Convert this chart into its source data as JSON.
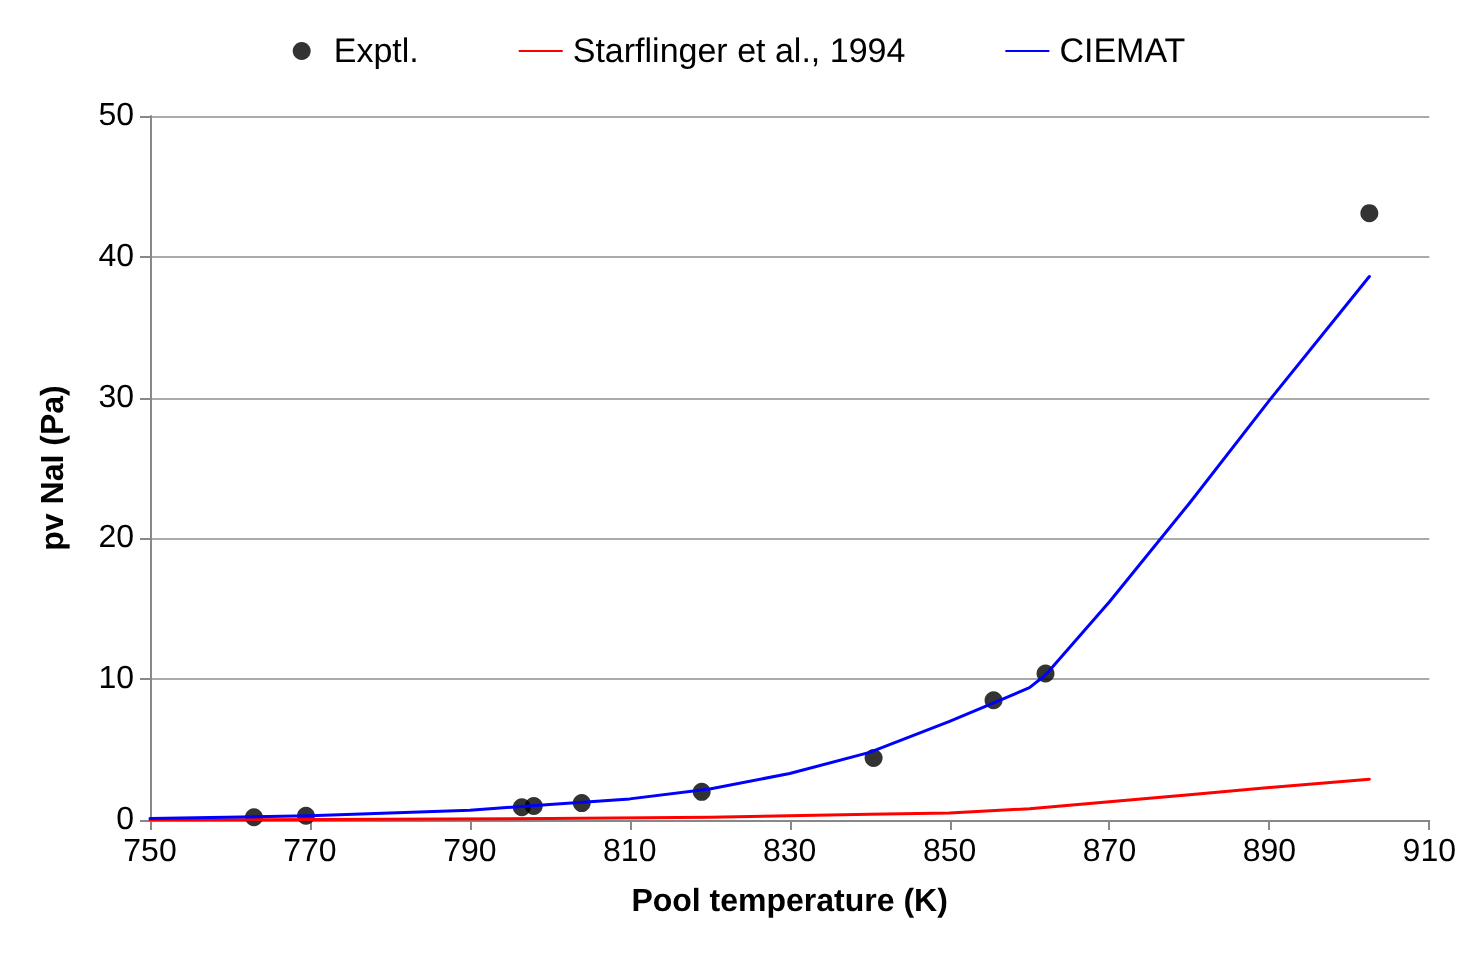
{
  "chart_data": {
    "type": "line",
    "xlabel": "Pool temperature (K)",
    "ylabel": "pv NaI (Pa)",
    "xlim": [
      750,
      910
    ],
    "xticks": [
      750,
      770,
      790,
      810,
      830,
      850,
      870,
      890,
      910
    ],
    "ylim": [
      0,
      50
    ],
    "yticks": [
      0,
      10,
      20,
      30,
      40,
      50
    ],
    "grid": "y",
    "legend": "top",
    "series": [
      {
        "name": "Exptl.",
        "type": "scatter",
        "marker": "circle",
        "color": "#000000",
        "x": [
          763,
          769.5,
          796.5,
          798,
          804,
          819,
          840.5,
          855.5,
          862,
          902.5
        ],
        "values": [
          0.2,
          0.3,
          0.9,
          1.0,
          1.2,
          2.0,
          4.4,
          8.5,
          10.4,
          43.1
        ]
      },
      {
        "name": "Starflinger et al., 1994",
        "marker": "none",
        "color": "#ff0000",
        "x": [
          750,
          800,
          820,
          840,
          850,
          860,
          870,
          880,
          890,
          902.5
        ],
        "values": [
          0,
          0.1,
          0.2,
          0.4,
          0.5,
          0.8,
          1.3,
          1.8,
          2.3,
          2.9
        ]
      },
      {
        "name": "CIEMAT",
        "marker": "none",
        "color": "#0000ff",
        "x": [
          750,
          770,
          790,
          800,
          810,
          820,
          830,
          840,
          850,
          855,
          860,
          862,
          870,
          880,
          890,
          902.5
        ],
        "values": [
          0.1,
          0.3,
          0.7,
          1.1,
          1.5,
          2.2,
          3.3,
          4.8,
          7.0,
          8.2,
          9.4,
          10.3,
          15.5,
          22.5,
          29.8,
          38.6
        ]
      }
    ]
  }
}
